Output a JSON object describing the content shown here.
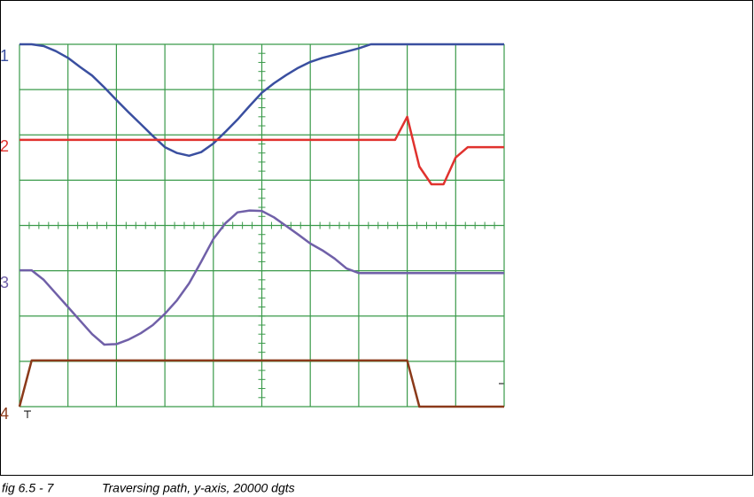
{
  "chart_data": {
    "type": "line",
    "caption_label": "fig 6.5 - 7",
    "caption": "Traversing path, y-axis, 20000 dgts",
    "x": [
      0,
      0.25,
      0.5,
      0.75,
      1,
      1.25,
      1.5,
      1.75,
      2,
      2.25,
      2.5,
      2.75,
      3,
      3.25,
      3.5,
      3.75,
      4,
      4.25,
      4.5,
      4.75,
      5,
      5.25,
      5.5,
      5.75,
      6,
      6.25,
      6.5,
      6.75,
      7,
      7.25,
      7.5,
      7.75,
      8,
      8.25,
      8.5,
      8.75,
      9,
      9.25,
      9.5,
      9.75,
      10
    ],
    "series": [
      {
        "name": "1",
        "color": "#3a4fa0",
        "values": [
          8.0,
          8.0,
          7.96,
          7.85,
          7.7,
          7.5,
          7.31,
          7.05,
          6.77,
          6.5,
          6.24,
          5.98,
          5.73,
          5.6,
          5.54,
          5.62,
          5.81,
          6.07,
          6.34,
          6.64,
          6.93,
          7.14,
          7.32,
          7.48,
          7.61,
          7.7,
          7.77,
          7.84,
          7.91,
          8.0,
          8.0,
          8.0,
          8.0,
          8.0,
          8.0,
          8.0,
          8.0,
          8.0,
          8.0,
          8.0,
          8.0
        ]
      },
      {
        "name": "2",
        "color": "#e0322e",
        "values": [
          5.89,
          5.89,
          5.89,
          5.89,
          5.89,
          5.89,
          5.89,
          5.89,
          5.89,
          5.89,
          5.89,
          5.89,
          5.89,
          5.89,
          5.89,
          5.89,
          5.89,
          5.89,
          5.89,
          5.89,
          5.89,
          5.89,
          5.89,
          5.89,
          5.89,
          5.89,
          5.89,
          5.89,
          5.89,
          5.89,
          5.89,
          5.89,
          6.4,
          5.3,
          4.91,
          4.91,
          5.5,
          5.73,
          5.73,
          5.73,
          5.73
        ]
      },
      {
        "name": "3",
        "color": "#7060a8",
        "values": [
          3.01,
          3.01,
          2.8,
          2.5,
          2.2,
          1.9,
          1.6,
          1.37,
          1.38,
          1.48,
          1.62,
          1.8,
          2.05,
          2.35,
          2.72,
          3.2,
          3.7,
          4.05,
          4.29,
          4.33,
          4.32,
          4.18,
          3.99,
          3.8,
          3.6,
          3.45,
          3.27,
          3.05,
          2.95,
          2.95,
          2.95,
          2.95,
          2.95,
          2.95,
          2.95,
          2.95,
          2.95,
          2.95,
          2.95,
          2.95,
          2.95
        ]
      },
      {
        "name": "4",
        "color": "#8b3a1a",
        "values": [
          0,
          1.02,
          1.02,
          1.02,
          1.02,
          1.02,
          1.02,
          1.02,
          1.02,
          1.02,
          1.02,
          1.02,
          1.02,
          1.02,
          1.02,
          1.02,
          1.02,
          1.02,
          1.02,
          1.02,
          1.02,
          1.02,
          1.02,
          1.02,
          1.02,
          1.02,
          1.02,
          1.02,
          1.02,
          1.02,
          1.02,
          1.02,
          1.02,
          0,
          0,
          0,
          0,
          0,
          0,
          0,
          0
        ]
      }
    ],
    "xlim": [
      0,
      10
    ],
    "ylim": [
      0,
      8
    ],
    "xticks": [
      0,
      1,
      2,
      3,
      4,
      5,
      6,
      7,
      8,
      9,
      10
    ],
    "yticks": [
      0,
      1,
      2,
      3,
      4,
      5,
      6,
      7,
      8
    ],
    "grid": true,
    "grid_color": "#3a9a4a"
  }
}
